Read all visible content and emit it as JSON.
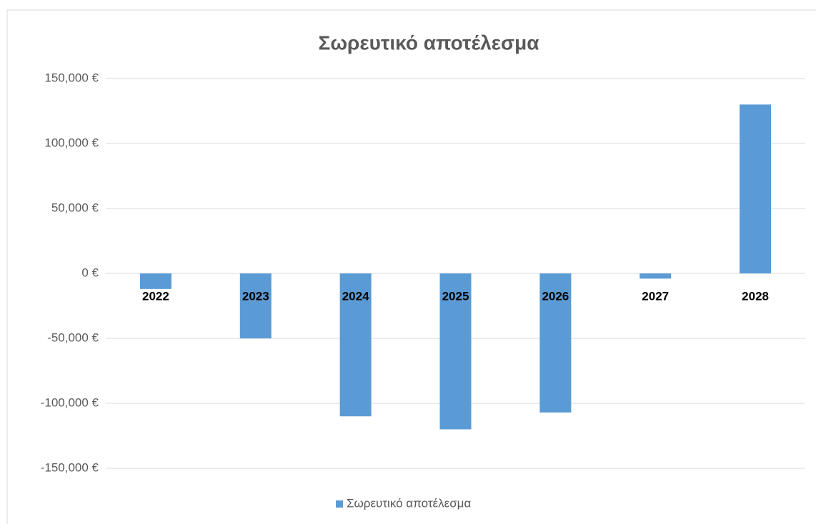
{
  "chart_data": {
    "type": "bar",
    "title": "Σωρευτικό αποτέλεσμα",
    "categories": [
      "2022",
      "2023",
      "2024",
      "2025",
      "2026",
      "2027",
      "2028"
    ],
    "series": [
      {
        "name": "Σωρευτικό αποτέλεσμα",
        "color": "#5b9bd5",
        "values": [
          -12000,
          -50000,
          -110000,
          -120000,
          -107000,
          -4000,
          130000
        ]
      }
    ],
    "ylim": [
      -150000,
      150000
    ],
    "yticks": [
      {
        "value": -150000,
        "label": "-150,000 €"
      },
      {
        "value": -100000,
        "label": "-100,000 €"
      },
      {
        "value": -50000,
        "label": "-50,000 €"
      },
      {
        "value": 0,
        "label": "0 €"
      },
      {
        "value": 50000,
        "label": "50,000 €"
      },
      {
        "value": 100000,
        "label": "100,000 €"
      },
      {
        "value": 150000,
        "label": "150,000 €"
      }
    ],
    "grid": true,
    "legend": "bottom"
  }
}
